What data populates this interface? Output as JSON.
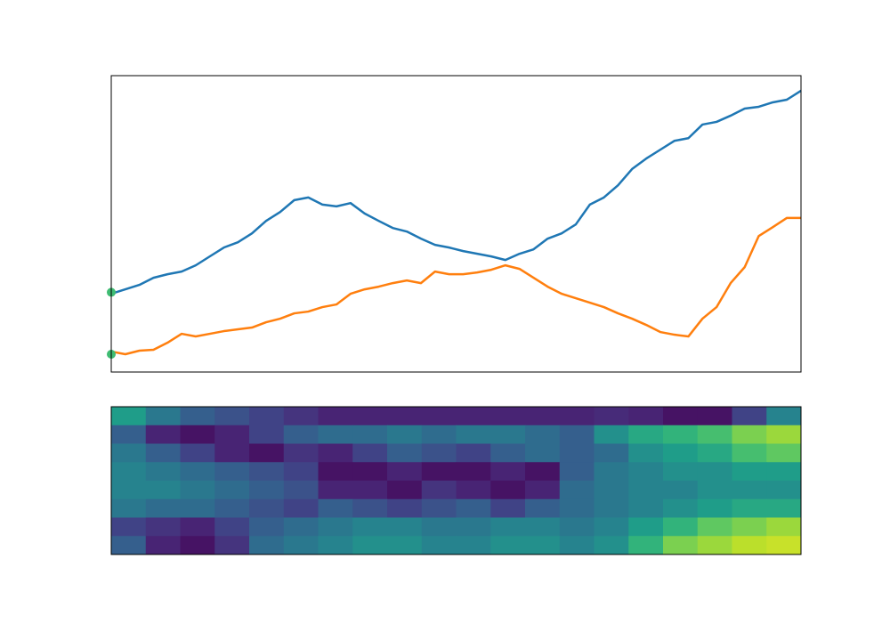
{
  "chart_data": [
    {
      "type": "line",
      "xlim": [
        0,
        49
      ],
      "ylim": [
        0,
        100
      ],
      "series": [
        {
          "color": "#1f77b4",
          "values": [
            26.4,
            27.9,
            29.4,
            31.8,
            33,
            33.9,
            36,
            39,
            42,
            43.8,
            46.8,
            51,
            54,
            58,
            58.9,
            56.5,
            55.9,
            57,
            53.5,
            51,
            48.6,
            47.4,
            45,
            42.9,
            42,
            40.8,
            39.9,
            39,
            37.8,
            39.9,
            41.4,
            45,
            46.8,
            49.8,
            56.5,
            58.9,
            63,
            68.5,
            72,
            75,
            78,
            78.9,
            83.5,
            84.4,
            86.5,
            88.9,
            89.5,
            91,
            91.9,
            94.9
          ]
        },
        {
          "color": "#ff7f0e",
          "values": [
            6.9,
            6,
            7.2,
            7.5,
            9.9,
            12.9,
            12,
            12.9,
            13.8,
            14.4,
            15,
            16.8,
            18,
            19.8,
            20.4,
            21.9,
            22.8,
            26.4,
            27.9,
            28.8,
            30,
            30.9,
            30,
            33.9,
            33,
            33,
            33.6,
            34.5,
            36,
            34.8,
            31.8,
            28.8,
            26.4,
            24.9,
            23.4,
            21.9,
            19.8,
            18,
            15.9,
            13.5,
            12.6,
            12,
            18,
            21.9,
            30,
            35.4,
            45.9,
            48.9,
            52,
            52
          ]
        }
      ],
      "markers": {
        "color": "#3fbc73",
        "x": [
          0,
          0
        ],
        "values": [
          26.9,
          6
        ]
      }
    },
    {
      "type": "heatmap",
      "colormap": "viridis",
      "clim": [
        0,
        1
      ],
      "values": [
        [
          0.55,
          0.4,
          0.3,
          0.25,
          0.2,
          0.15,
          0.1,
          0.1,
          0.1,
          0.1,
          0.1,
          0.1,
          0.1,
          0.1,
          0.12,
          0.1,
          0.05,
          0.05,
          0.2,
          0.45
        ],
        [
          0.3,
          0.1,
          0.05,
          0.1,
          0.2,
          0.3,
          0.35,
          0.35,
          0.4,
          0.35,
          0.4,
          0.4,
          0.35,
          0.3,
          0.5,
          0.6,
          0.65,
          0.7,
          0.8,
          0.85
        ],
        [
          0.4,
          0.3,
          0.2,
          0.1,
          0.05,
          0.15,
          0.1,
          0.2,
          0.3,
          0.25,
          0.2,
          0.3,
          0.35,
          0.3,
          0.35,
          0.5,
          0.55,
          0.6,
          0.7,
          0.75
        ],
        [
          0.45,
          0.4,
          0.35,
          0.3,
          0.25,
          0.2,
          0.05,
          0.05,
          0.1,
          0.05,
          0.05,
          0.1,
          0.05,
          0.3,
          0.4,
          0.45,
          0.5,
          0.5,
          0.55,
          0.55
        ],
        [
          0.45,
          0.45,
          0.4,
          0.35,
          0.3,
          0.25,
          0.1,
          0.1,
          0.05,
          0.15,
          0.1,
          0.05,
          0.1,
          0.35,
          0.4,
          0.45,
          0.45,
          0.5,
          0.5,
          0.5
        ],
        [
          0.4,
          0.35,
          0.35,
          0.3,
          0.25,
          0.2,
          0.3,
          0.25,
          0.2,
          0.25,
          0.3,
          0.2,
          0.3,
          0.35,
          0.4,
          0.45,
          0.5,
          0.55,
          0.6,
          0.6
        ],
        [
          0.2,
          0.15,
          0.1,
          0.2,
          0.3,
          0.35,
          0.4,
          0.45,
          0.45,
          0.4,
          0.4,
          0.45,
          0.45,
          0.4,
          0.45,
          0.55,
          0.65,
          0.75,
          0.8,
          0.85
        ],
        [
          0.3,
          0.1,
          0.05,
          0.15,
          0.35,
          0.4,
          0.45,
          0.5,
          0.5,
          0.45,
          0.45,
          0.5,
          0.5,
          0.45,
          0.5,
          0.65,
          0.8,
          0.85,
          0.9,
          0.92
        ]
      ]
    }
  ]
}
